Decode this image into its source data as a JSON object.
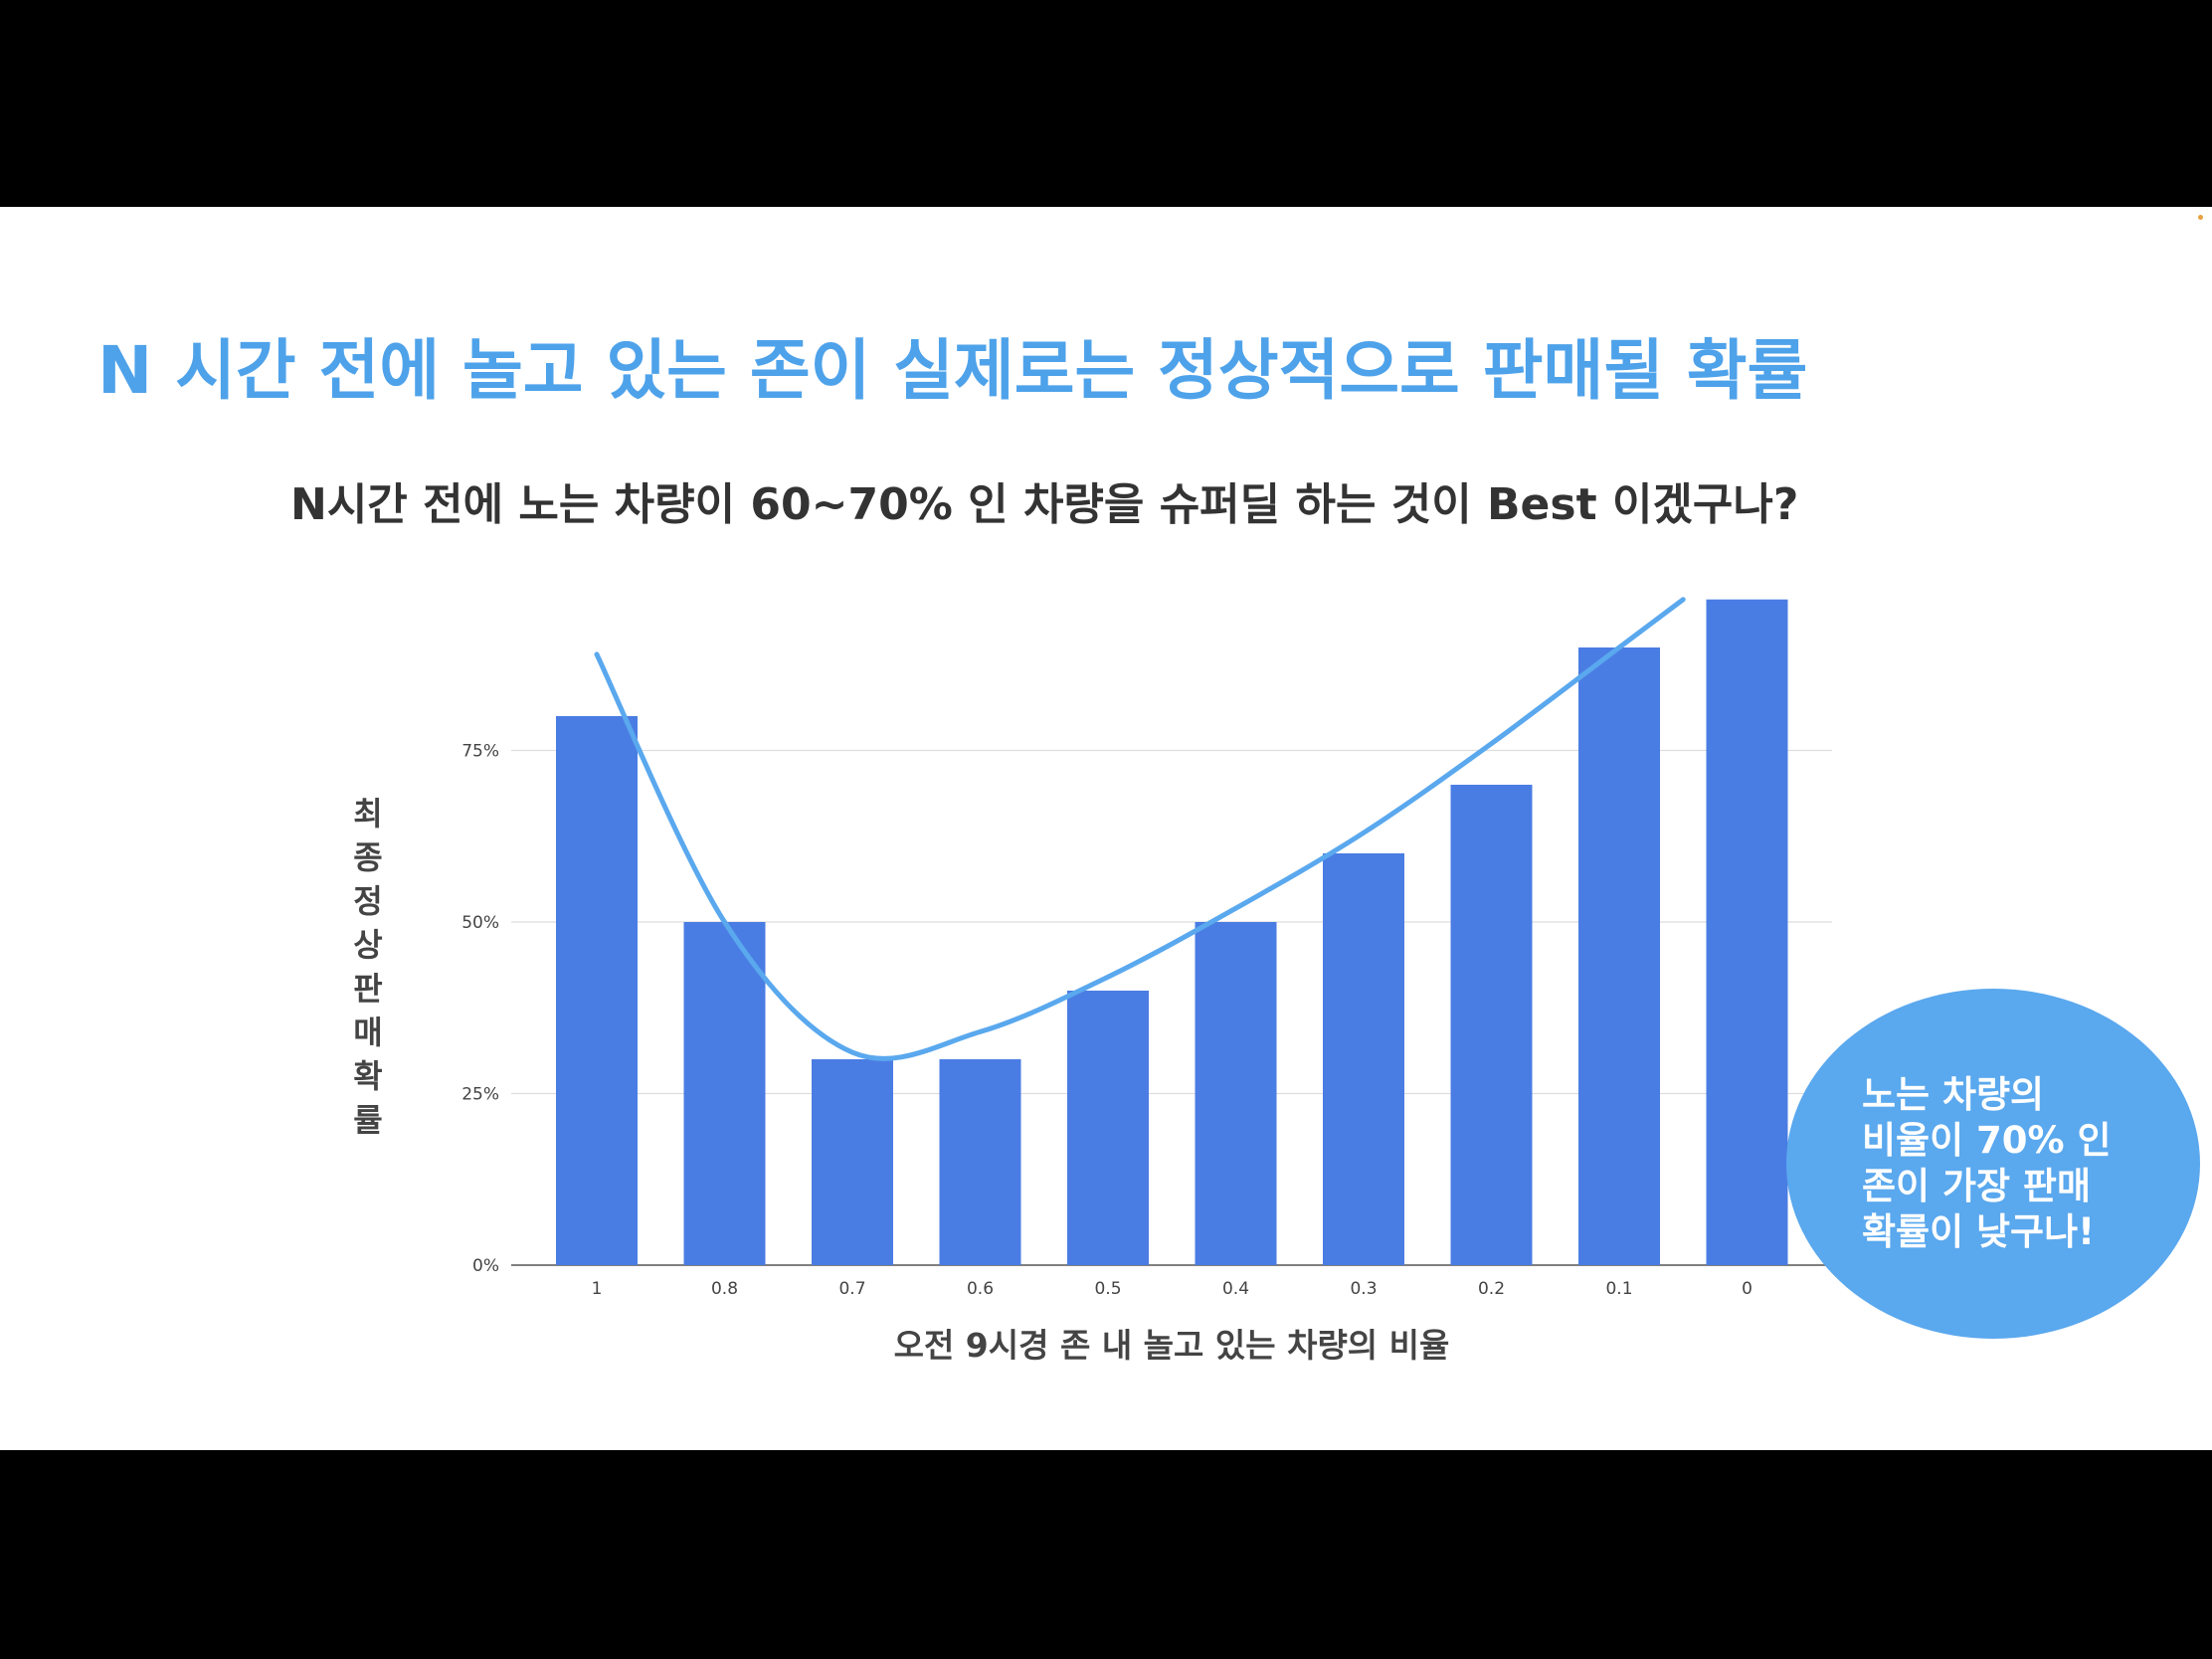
{
  "slide": {
    "title": "N 시간 전에 놀고 있는 존이 실제로는 정상적으로 판매될 확률",
    "subtitle": "N시간 전에 노는 차량이 60~70% 인 차량을 슈퍼딜 하는 것이 Best 이겠구나?",
    "callout": "노는 차량의\n비율이 70% 인\n존이 가장 판매\n확률이 낮구나!"
  },
  "colors": {
    "bar": "#4a7de3",
    "trend_line": "#5aa8ee",
    "title": "#4ea2ea",
    "callout": "#5aa8ee",
    "grid": "#dddddd"
  },
  "chart_data": {
    "type": "bar",
    "categories": [
      "1",
      "0.8",
      "0.7",
      "0.6",
      "0.5",
      "0.4",
      "0.3",
      "0.2",
      "0.1",
      "0"
    ],
    "values": [
      0.8,
      0.5,
      0.3,
      0.3,
      0.4,
      0.5,
      0.6,
      0.7,
      0.9,
      0.97
    ],
    "trend_line": {
      "type": "smooth-curve",
      "points": [
        {
          "x": "1",
          "y": 0.89
        },
        {
          "x": "0.8",
          "y": 0.5
        },
        {
          "x": "0.7",
          "y": 0.31
        },
        {
          "x": "0.6",
          "y": 0.34
        },
        {
          "x": "0.5",
          "y": 0.42
        },
        {
          "x": "0.4",
          "y": 0.52
        },
        {
          "x": "0.3",
          "y": 0.63
        },
        {
          "x": "0.2",
          "y": 0.76
        },
        {
          "x": "0.1",
          "y": 0.9
        },
        {
          "x": "0.05",
          "y": 0.97
        }
      ]
    },
    "xlabel": "오전 9시경 존 내 놀고 있는 차량의 비율",
    "ylabel": "최종정상판매확률",
    "ylim": [
      0,
      0.97
    ],
    "yticks": [
      {
        "value": 0,
        "label": "0%"
      },
      {
        "value": 0.25,
        "label": "25%"
      },
      {
        "value": 0.5,
        "label": "50%"
      },
      {
        "value": 0.75,
        "label": "75%"
      }
    ],
    "grid": true,
    "legend": "none"
  }
}
